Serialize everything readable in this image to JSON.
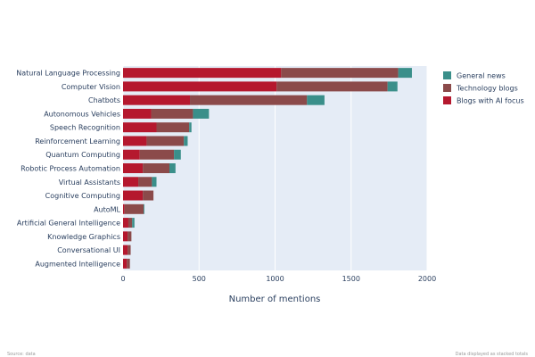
{
  "chart_data": {
    "type": "bar",
    "orientation": "horizontal",
    "stacked": true,
    "xlabel": "Number of mentions",
    "ylabel": "",
    "xlim": [
      0,
      2000
    ],
    "xticks": [
      0,
      500,
      1000,
      1500,
      2000
    ],
    "grid": true,
    "legend_position": "right",
    "categories": [
      "Natural Language Processing",
      "Computer Vision",
      "Chatbots",
      "Autonomous Vehicles",
      "Speech Recognition",
      "Reinforcement Learning",
      "Quantum Computing",
      "Robotic Process Automation",
      "Virtual Assistants",
      "Cognitive Computing",
      "AutoML",
      "Artificial General Intelligence",
      "Knowledge Graphics",
      "Conversational UI",
      "Augmented Intelligence"
    ],
    "series": [
      {
        "name": "Blogs with AI focus",
        "color": "#b5182e",
        "values": [
          1040,
          1010,
          440,
          185,
          220,
          155,
          110,
          130,
          100,
          130,
          10,
          35,
          30,
          30,
          25
        ]
      },
      {
        "name": "Technology blogs",
        "color": "#8b4a4a",
        "values": [
          770,
          730,
          770,
          275,
          215,
          245,
          225,
          175,
          90,
          70,
          125,
          25,
          25,
          20,
          20
        ]
      },
      {
        "name": "General news",
        "color": "#3a8f8a",
        "values": [
          90,
          65,
          115,
          105,
          15,
          25,
          45,
          40,
          30,
          0,
          5,
          15,
          0,
          0,
          0
        ]
      }
    ],
    "legend_order": [
      "General news",
      "Technology blogs",
      "Blogs with AI focus"
    ],
    "plot_background": "#e5ecf6"
  },
  "footer": {
    "left_note": "Source: data",
    "right_note": "Data displayed as stacked totals"
  }
}
